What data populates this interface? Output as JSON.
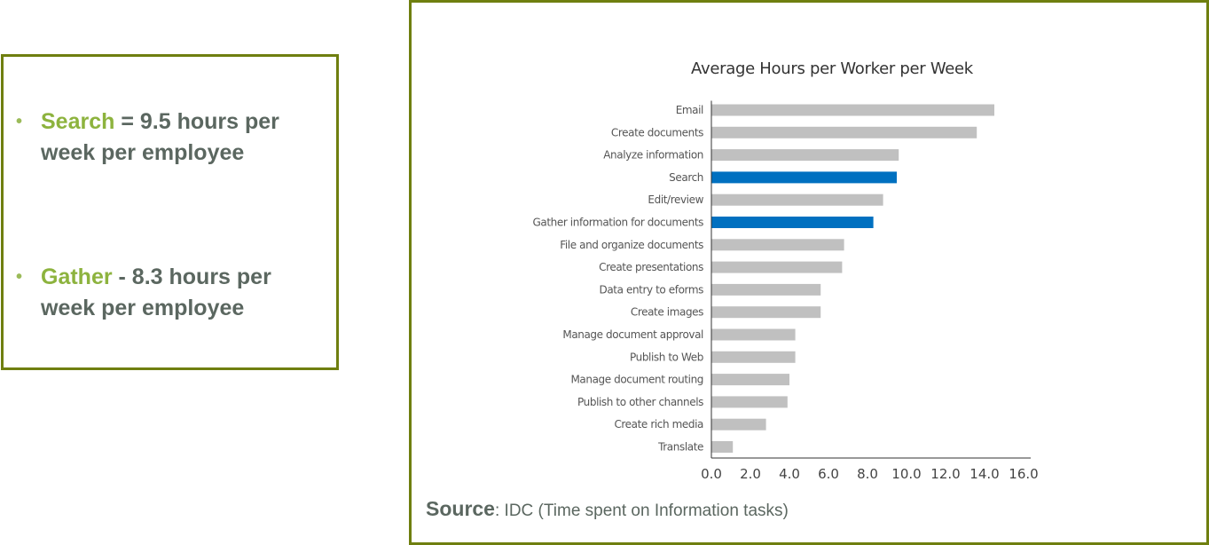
{
  "bullets": [
    {
      "highlight": "Search",
      "rest": " = 9.5 hours  per week per employee"
    },
    {
      "highlight": "Gather",
      "rest": "  - 8.3 hours per week per employee"
    }
  ],
  "source": {
    "label": "Source",
    "text": ": IDC (Time spent on Information tasks)"
  },
  "colors": {
    "frame": "#6f7f0f",
    "bar": "#c0c0c0",
    "highlight_bar": "#0070c0",
    "bullet_highlight": "#8db33e",
    "bullet_text": "#5b6760"
  },
  "chart_data": {
    "type": "bar",
    "orientation": "horizontal",
    "title": "Average Hours per Worker per Week",
    "xlabel": "",
    "ylabel": "",
    "xlim": [
      0,
      16
    ],
    "ticks": [
      "0.0",
      "2.0",
      "4.0",
      "6.0",
      "8.0",
      "10.0",
      "12.0",
      "14.0",
      "16.0"
    ],
    "grid": false,
    "categories": [
      "Email",
      "Create documents",
      "Analyze information",
      "Search",
      "Edit/review",
      "Gather information for documents",
      "File and organize documents",
      "Create presentations",
      "Data entry to eforms",
      "Create images",
      "Manage document approval",
      "Publish to Web",
      "Manage document routing",
      "Publish to other channels",
      "Create rich media",
      "Translate"
    ],
    "values": [
      14.5,
      13.6,
      9.6,
      9.5,
      8.8,
      8.3,
      6.8,
      6.7,
      5.6,
      5.6,
      4.3,
      4.3,
      4.0,
      3.9,
      2.8,
      1.1
    ],
    "highlighted": [
      "Search",
      "Gather information for documents"
    ]
  }
}
